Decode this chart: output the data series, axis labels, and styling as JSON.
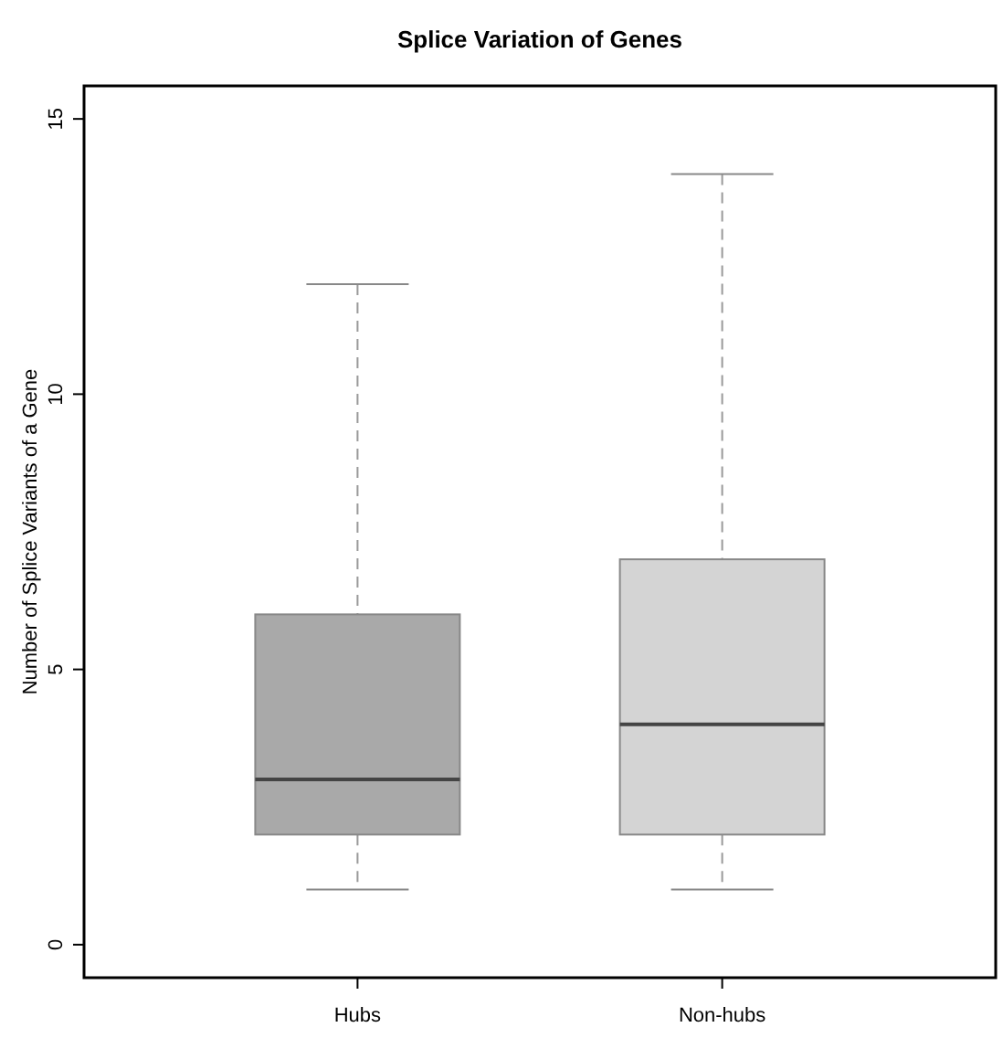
{
  "chart_data": {
    "type": "box",
    "title": "Splice Variation of Genes",
    "ylabel": "Number of Splice Variants of a Gene",
    "categories": [
      "Hubs",
      "Non-hubs"
    ],
    "boxes": [
      {
        "low": 1,
        "q1": 2,
        "median": 3,
        "q3": 6,
        "high": 12
      },
      {
        "low": 1,
        "q1": 2,
        "median": 4,
        "q3": 7,
        "high": 14
      }
    ],
    "colors": [
      "#a9a9a9",
      "#d4d4d4"
    ],
    "ylim": [
      -0.6,
      15.6
    ],
    "yticks": [
      0,
      5,
      10,
      15
    ],
    "grid": false
  }
}
